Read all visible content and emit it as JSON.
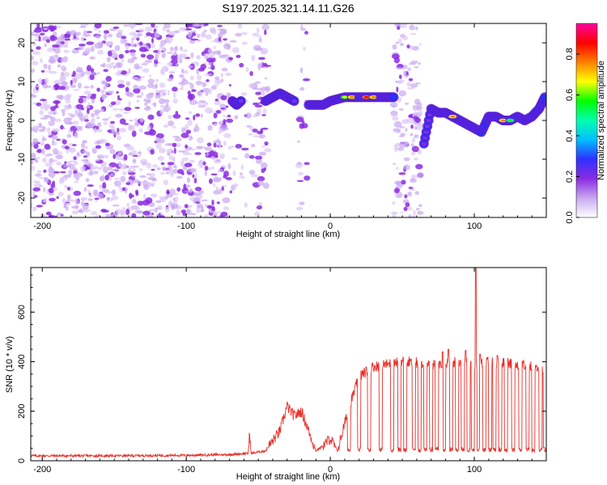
{
  "title": "S197.2025.321.14.11.G26",
  "chart_data": [
    {
      "type": "heatmap",
      "name": "spectrogram",
      "xlabel": "Height of straight line (km)",
      "ylabel": "Frequency (Hz)",
      "xlim": [
        -208,
        150
      ],
      "ylim": [
        -25,
        25
      ],
      "xticks": [
        -200,
        -100,
        0,
        100
      ],
      "yticks": [
        -20,
        -10,
        0,
        10,
        20
      ],
      "colorbar": {
        "label": "Normalized spectral amplitude",
        "range": [
          0.0,
          0.95
        ],
        "ticks": [
          0.0,
          0.2,
          0.4,
          0.6,
          0.8
        ],
        "colors": [
          "#ffffff",
          "#c8a8f0",
          "#8a2be2",
          "#3030ff",
          "#00bfff",
          "#00ffb0",
          "#00ff00",
          "#ffff00",
          "#ff8000",
          "#ff0000",
          "#ff00a0"
        ]
      },
      "noise_regions": [
        {
          "x": [
            -208,
            -70
          ],
          "density": 1.0
        },
        {
          "x": [
            -70,
            -55
          ],
          "density": 0.25
        },
        {
          "x": [
            -55,
            -43
          ],
          "density": 0.7
        },
        {
          "x": [
            -22,
            -15
          ],
          "density": 0.35
        },
        {
          "x": [
            44,
            63
          ],
          "density": 0.8
        }
      ],
      "ridge": [
        {
          "x": -68,
          "f": 5,
          "a": 0.3
        },
        {
          "x": -65,
          "f": 4,
          "a": 0.35
        },
        {
          "x": -62,
          "f": 5,
          "a": 0.3
        },
        {
          "x": -45,
          "f": 5,
          "a": 0.35
        },
        {
          "x": -40,
          "f": 6,
          "a": 0.4
        },
        {
          "x": -35,
          "f": 7,
          "a": 0.4
        },
        {
          "x": -30,
          "f": 6,
          "a": 0.35
        },
        {
          "x": -25,
          "f": 5,
          "a": 0.35
        },
        {
          "x": -15,
          "f": 4,
          "a": 0.4
        },
        {
          "x": -10,
          "f": 4,
          "a": 0.45
        },
        {
          "x": -5,
          "f": 4,
          "a": 0.45
        },
        {
          "x": 0,
          "f": 5,
          "a": 0.5
        },
        {
          "x": 5,
          "f": 5.5,
          "a": 0.5
        },
        {
          "x": 10,
          "f": 6,
          "a": 0.7
        },
        {
          "x": 15,
          "f": 6,
          "a": 0.8
        },
        {
          "x": 20,
          "f": 6,
          "a": 0.5
        },
        {
          "x": 25,
          "f": 6,
          "a": 0.85
        },
        {
          "x": 30,
          "f": 6,
          "a": 0.8
        },
        {
          "x": 35,
          "f": 6,
          "a": 0.55
        },
        {
          "x": 40,
          "f": 6,
          "a": 0.5
        },
        {
          "x": 44,
          "f": 6,
          "a": 0.45
        },
        {
          "x": 65,
          "f": -6,
          "a": 0.35
        },
        {
          "x": 70,
          "f": 3,
          "a": 0.4
        },
        {
          "x": 75,
          "f": 2,
          "a": 0.45
        },
        {
          "x": 80,
          "f": 2,
          "a": 0.5
        },
        {
          "x": 85,
          "f": 1,
          "a": 0.75
        },
        {
          "x": 90,
          "f": 0,
          "a": 0.5
        },
        {
          "x": 95,
          "f": -1,
          "a": 0.45
        },
        {
          "x": 100,
          "f": -2,
          "a": 0.4
        },
        {
          "x": 105,
          "f": -3,
          "a": 0.35
        },
        {
          "x": 110,
          "f": 1,
          "a": 0.45
        },
        {
          "x": 115,
          "f": 1,
          "a": 0.55
        },
        {
          "x": 120,
          "f": 0,
          "a": 0.8
        },
        {
          "x": 125,
          "f": 0,
          "a": 0.6
        },
        {
          "x": 130,
          "f": 1,
          "a": 0.5
        },
        {
          "x": 135,
          "f": 0,
          "a": 0.5
        },
        {
          "x": 140,
          "f": 1,
          "a": 0.45
        },
        {
          "x": 145,
          "f": 3,
          "a": 0.45
        },
        {
          "x": 149,
          "f": 6,
          "a": 0.5
        }
      ]
    },
    {
      "type": "line",
      "name": "snr",
      "xlabel": "Height of straight line (km)",
      "ylabel": "SNR (10 * v/v)",
      "xlim": [
        -208,
        150
      ],
      "ylim": [
        0,
        780
      ],
      "xticks": [
        -200,
        -100,
        0,
        100
      ],
      "yticks": [
        0,
        200,
        400,
        600
      ],
      "line_color": "#e8302a",
      "series": [
        {
          "x": -208,
          "y": 20
        },
        {
          "x": -150,
          "y": 20
        },
        {
          "x": -100,
          "y": 22
        },
        {
          "x": -70,
          "y": 25
        },
        {
          "x": -57,
          "y": 30
        },
        {
          "x": -56,
          "y": 110
        },
        {
          "x": -55,
          "y": 30
        },
        {
          "x": -45,
          "y": 40
        },
        {
          "x": -35,
          "y": 120
        },
        {
          "x": -30,
          "y": 220
        },
        {
          "x": -25,
          "y": 180
        },
        {
          "x": -20,
          "y": 200
        },
        {
          "x": -15,
          "y": 120
        },
        {
          "x": -10,
          "y": 40
        },
        {
          "x": -5,
          "y": 60
        },
        {
          "x": 0,
          "y": 90
        },
        {
          "x": 5,
          "y": 40
        },
        {
          "x": 10,
          "y": 150
        },
        {
          "x": 15,
          "y": 250
        },
        {
          "x": 20,
          "y": 340
        },
        {
          "x": 25,
          "y": 360
        },
        {
          "x": 30,
          "y": 380
        },
        {
          "x": 40,
          "y": 390
        },
        {
          "x": 50,
          "y": 400
        },
        {
          "x": 60,
          "y": 395
        },
        {
          "x": 70,
          "y": 390
        },
        {
          "x": 80,
          "y": 395
        },
        {
          "x": 90,
          "y": 400
        },
        {
          "x": 100,
          "y": 390
        },
        {
          "x": 110,
          "y": 400
        },
        {
          "x": 120,
          "y": 395
        },
        {
          "x": 130,
          "y": 390
        },
        {
          "x": 140,
          "y": 380
        },
        {
          "x": 150,
          "y": 360
        }
      ],
      "spikes": [
        {
          "x": 101,
          "y": 780
        },
        {
          "x": 78,
          "y": 440
        },
        {
          "x": 82,
          "y": 450
        },
        {
          "x": 94,
          "y": 445
        },
        {
          "x": 104,
          "y": 430
        },
        {
          "x": 116,
          "y": 425
        }
      ],
      "dropouts": [
        13,
        20,
        27,
        35,
        43,
        48,
        52,
        58,
        62,
        66,
        70,
        74,
        79,
        84,
        88,
        92,
        96,
        99,
        103,
        107,
        111,
        114,
        118,
        122,
        127,
        132,
        137,
        141,
        146,
        149
      ]
    }
  ]
}
